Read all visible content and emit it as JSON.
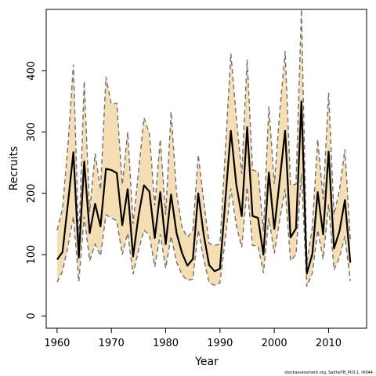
{
  "chart_data": {
    "type": "line",
    "xlabel": "Year",
    "ylabel": "Recruits",
    "xlim": [
      1958,
      2017
    ],
    "ylim": [
      -20,
      500
    ],
    "xticks": [
      1960,
      1970,
      1980,
      1990,
      2000,
      2010
    ],
    "yticks": [
      0,
      100,
      200,
      300,
      400
    ],
    "grid": false,
    "caption": "stockassessment.org, SaitheTB_P03.1, r6044",
    "colors": {
      "band": "#f5deb3",
      "median": "#000000",
      "bounds": "#707070",
      "frame": "#000000"
    },
    "x": [
      1960,
      1961,
      1962,
      1963,
      1964,
      1965,
      1966,
      1967,
      1968,
      1969,
      1970,
      1971,
      1972,
      1973,
      1974,
      1975,
      1976,
      1977,
      1978,
      1979,
      1980,
      1981,
      1982,
      1983,
      1984,
      1985,
      1986,
      1987,
      1988,
      1989,
      1990,
      1991,
      1992,
      1993,
      1994,
      1995,
      1996,
      1997,
      1998,
      1999,
      2000,
      2001,
      2002,
      2003,
      2004,
      2005,
      2006,
      2007,
      2008,
      2009,
      2010,
      2011,
      2012,
      2013,
      2014
    ],
    "series": [
      {
        "role": "estimate",
        "values": [
          92,
          104,
          183,
          267,
          95,
          252,
          135,
          183,
          146,
          240,
          238,
          233,
          148,
          207,
          97,
          163,
          213,
          203,
          127,
          202,
          117,
          198,
          135,
          103,
          82,
          93,
          200,
          133,
          83,
          73,
          77,
          191,
          302,
          215,
          163,
          308,
          163,
          160,
          100,
          234,
          142,
          222,
          302,
          128,
          143,
          350,
          69,
          101,
          202,
          133,
          268,
          110,
          138,
          189,
          87
        ]
      },
      {
        "role": "upper",
        "values": [
          140,
          175,
          278,
          410,
          118,
          383,
          170,
          265,
          206,
          390,
          345,
          347,
          214,
          300,
          150,
          235,
          323,
          298,
          180,
          288,
          165,
          333,
          200,
          145,
          128,
          140,
          263,
          188,
          118,
          115,
          117,
          272,
          428,
          325,
          232,
          418,
          238,
          236,
          138,
          342,
          215,
          333,
          432,
          213,
          215,
          500,
          88,
          145,
          288,
          190,
          364,
          165,
          205,
          272,
          125
        ]
      },
      {
        "role": "lower",
        "values": [
          55,
          73,
          113,
          162,
          56,
          162,
          90,
          117,
          98,
          165,
          160,
          155,
          100,
          135,
          68,
          107,
          140,
          132,
          80,
          133,
          78,
          130,
          88,
          67,
          58,
          60,
          140,
          93,
          54,
          50,
          54,
          127,
          208,
          148,
          112,
          210,
          115,
          114,
          70,
          160,
          102,
          157,
          207,
          90,
          100,
          232,
          48,
          70,
          140,
          93,
          182,
          75,
          95,
          130,
          57
        ]
      }
    ]
  }
}
